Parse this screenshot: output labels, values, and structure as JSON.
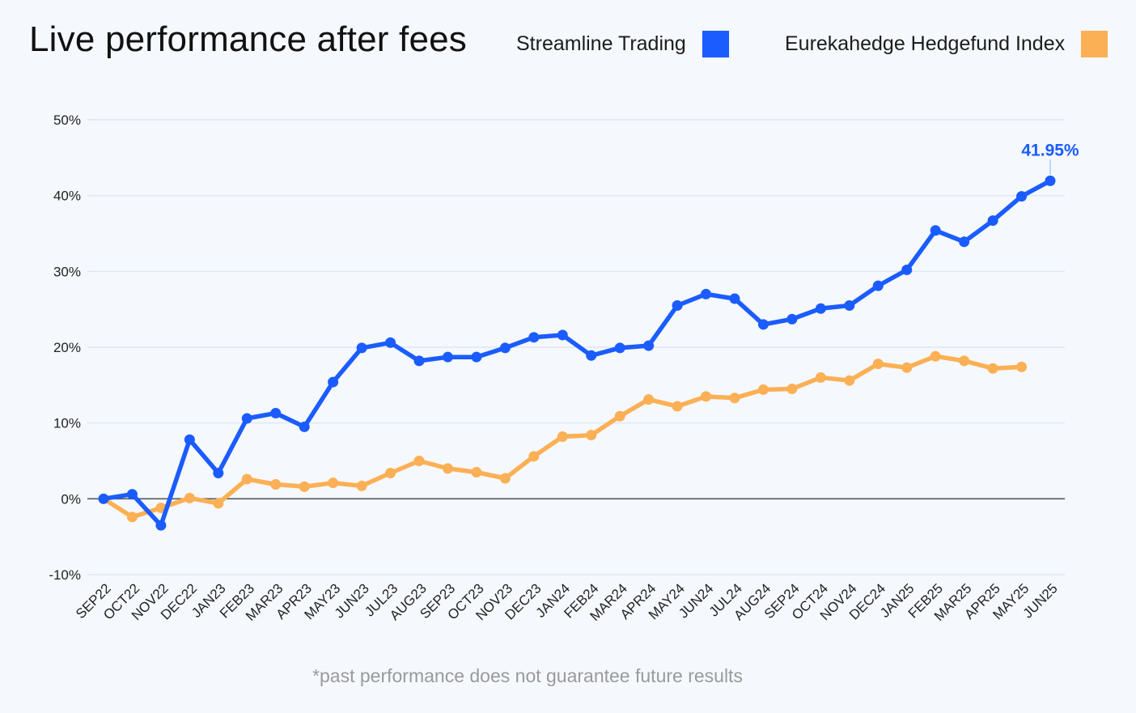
{
  "title": "Live performance after fees",
  "legend": [
    {
      "label": "Streamline Trading",
      "color": "#1a5cff"
    },
    {
      "label": "Eurekahedge Hedgefund Index",
      "color": "#fbb055"
    }
  ],
  "footnote": "*past performance does not guarantee future results",
  "chart_data": {
    "type": "line",
    "categories": [
      "SEP22",
      "OCT22",
      "NOV22",
      "DEC22",
      "JAN23",
      "FEB23",
      "MAR23",
      "APR23",
      "MAY23",
      "JUN23",
      "JUL23",
      "AUG23",
      "SEP23",
      "OCT23",
      "NOV23",
      "DEC23",
      "JAN24",
      "FEB24",
      "MAR24",
      "APR24",
      "MAY24",
      "JUN24",
      "JUL24",
      "AUG24",
      "SEP24",
      "OCT24",
      "NOV24",
      "DEC24",
      "JAN25",
      "FEB25",
      "MAR25",
      "APR25",
      "MAY25",
      "JUN25"
    ],
    "series": [
      {
        "name": "Streamline Trading",
        "color": "#1a5cff",
        "values": [
          0,
          0.6,
          -3.5,
          7.8,
          3.4,
          10.6,
          11.3,
          9.5,
          15.4,
          19.9,
          20.6,
          18.2,
          18.7,
          18.7,
          19.9,
          21.3,
          21.6,
          18.9,
          19.9,
          20.2,
          25.5,
          27.0,
          26.4,
          23.0,
          23.7,
          25.1,
          25.5,
          28.1,
          30.2,
          35.4,
          33.9,
          36.7,
          39.9,
          41.95
        ]
      },
      {
        "name": "Eurekahedge Hedgefund Index",
        "color": "#fbb055",
        "values": [
          0,
          -2.4,
          -1.2,
          0.1,
          -0.6,
          2.6,
          1.9,
          1.6,
          2.1,
          1.7,
          3.4,
          5.0,
          4.0,
          3.5,
          2.7,
          5.6,
          8.2,
          8.4,
          10.9,
          13.1,
          12.2,
          13.5,
          13.3,
          14.4,
          14.5,
          16.0,
          15.6,
          17.8,
          17.3,
          18.8,
          18.2,
          17.2,
          17.4,
          null
        ]
      }
    ],
    "yticks": [
      "-10%",
      "0%",
      "10%",
      "20%",
      "30%",
      "40%",
      "50%"
    ],
    "ylim": [
      -10,
      50
    ],
    "grid": true,
    "legend_position": "top",
    "annotation": {
      "text": "41.95%",
      "series": "Streamline Trading",
      "category": "JUN25"
    }
  }
}
